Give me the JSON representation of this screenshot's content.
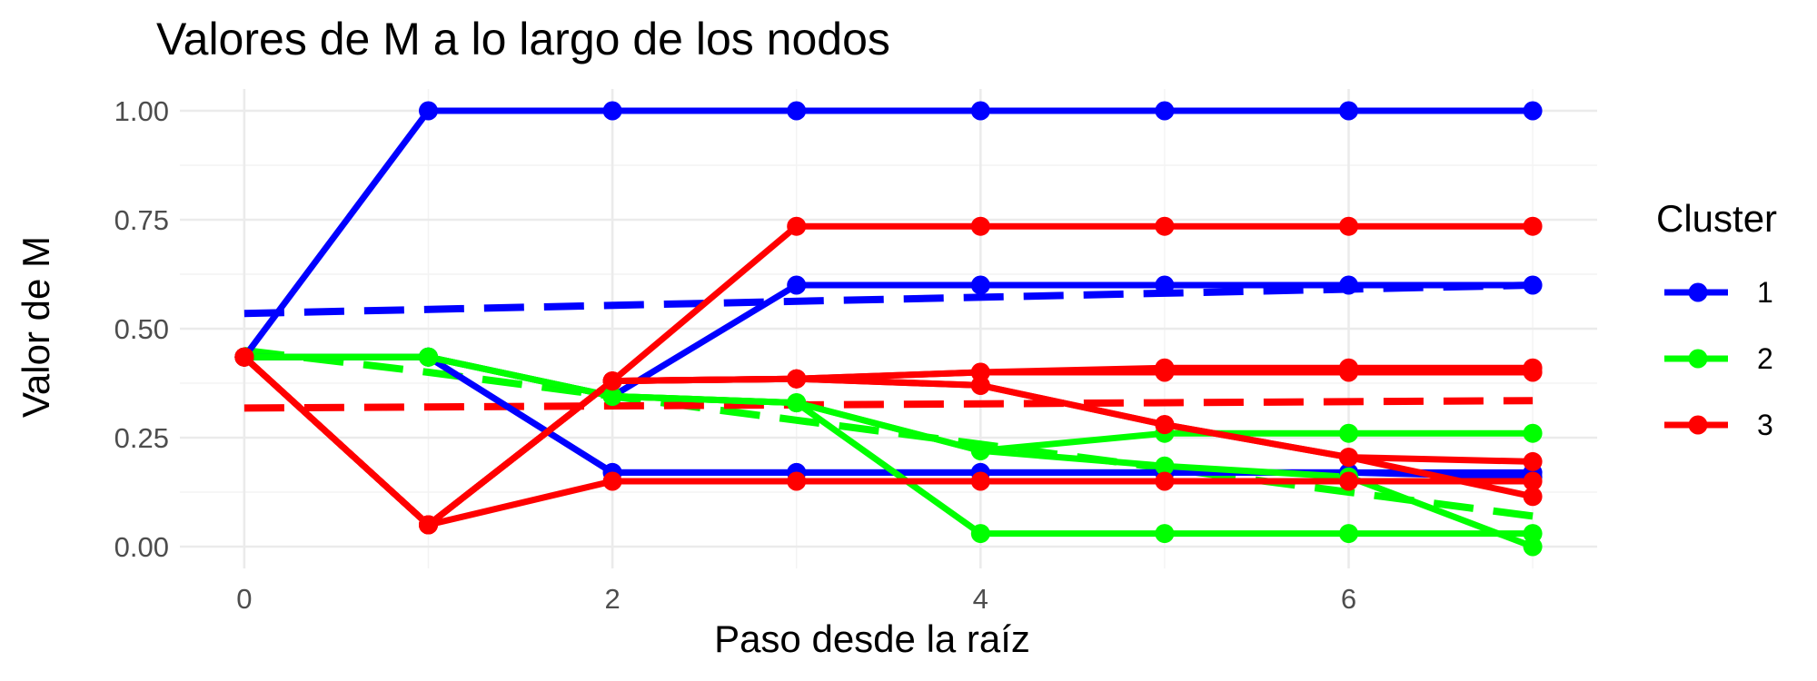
{
  "chart_data": {
    "type": "line",
    "title": "Valores de M a lo largo de los nodos",
    "xlabel": "Paso desde la raíz",
    "ylabel": "Valor de M",
    "xlim": [
      -0.35,
      7.35
    ],
    "ylim": [
      -0.05,
      1.05
    ],
    "x_ticks": [
      0,
      2,
      4,
      6
    ],
    "x_tick_labels": [
      "0",
      "2",
      "4",
      "6"
    ],
    "y_ticks": [
      0,
      0.25,
      0.5,
      0.75,
      1.0
    ],
    "y_tick_labels": [
      "0.00",
      "0.25",
      "0.50",
      "0.75",
      "1.00"
    ],
    "grid": true,
    "legend": {
      "title": "Cluster",
      "position": "right",
      "entries": [
        {
          "label": "1",
          "color": "#0000ff"
        },
        {
          "label": "2",
          "color": "#00ff00"
        },
        {
          "label": "3",
          "color": "#ff0000"
        }
      ]
    },
    "x": [
      0,
      1,
      2,
      3,
      4,
      5,
      6,
      7
    ],
    "series": [
      {
        "cluster": "1",
        "color": "#0000ff",
        "values": [
          0.435,
          1.0,
          1.0,
          1.0,
          1.0,
          1.0,
          1.0,
          1.0
        ]
      },
      {
        "cluster": "1",
        "color": "#0000ff",
        "values": [
          0.435,
          0.435,
          0.345,
          0.6,
          0.6,
          0.6,
          0.6,
          0.6
        ]
      },
      {
        "cluster": "1",
        "color": "#0000ff",
        "values": [
          0.435,
          0.435,
          0.17,
          0.17,
          0.17,
          0.17,
          0.17,
          0.17
        ]
      },
      {
        "cluster": "1",
        "color": "#0000ff",
        "values": [
          0.435,
          0.435,
          0.17,
          0.17,
          0.17,
          0.17,
          0.17,
          0.16
        ]
      },
      {
        "cluster": "2",
        "color": "#00ff00",
        "values": [
          0.435,
          0.435,
          0.345,
          0.33,
          0.22,
          0.26,
          0.26,
          0.26
        ]
      },
      {
        "cluster": "2",
        "color": "#00ff00",
        "values": [
          0.435,
          0.435,
          0.345,
          0.33,
          0.22,
          0.185,
          0.16,
          0.0
        ]
      },
      {
        "cluster": "2",
        "color": "#00ff00",
        "values": [
          0.435,
          0.435,
          0.345,
          0.33,
          0.03,
          0.03,
          0.03,
          0.03
        ]
      },
      {
        "cluster": "3",
        "color": "#ff0000",
        "values": [
          0.435,
          0.05,
          0.38,
          0.735,
          0.735,
          0.735,
          0.735,
          0.735
        ]
      },
      {
        "cluster": "3",
        "color": "#ff0000",
        "values": [
          0.435,
          0.05,
          0.38,
          0.385,
          0.4,
          0.41,
          0.41,
          0.41
        ]
      },
      {
        "cluster": "3",
        "color": "#ff0000",
        "values": [
          0.435,
          0.05,
          0.38,
          0.385,
          0.4,
          0.4,
          0.4,
          0.4
        ]
      },
      {
        "cluster": "3",
        "color": "#ff0000",
        "values": [
          0.435,
          0.05,
          0.38,
          0.385,
          0.37,
          0.28,
          0.205,
          0.195
        ]
      },
      {
        "cluster": "3",
        "color": "#ff0000",
        "values": [
          0.435,
          0.05,
          0.38,
          0.385,
          0.37,
          0.28,
          0.205,
          0.115
        ]
      },
      {
        "cluster": "3",
        "color": "#ff0000",
        "values": [
          0.435,
          0.05,
          0.15,
          0.15,
          0.15,
          0.15,
          0.15,
          0.15
        ]
      }
    ],
    "trend_lines": [
      {
        "cluster": "1",
        "color": "#0000ff",
        "x": [
          0,
          7
        ],
        "values": [
          0.535,
          0.6
        ]
      },
      {
        "cluster": "2",
        "color": "#00ff00",
        "x": [
          0,
          1,
          2,
          3,
          4,
          5,
          6,
          7
        ],
        "values": [
          0.45,
          0.4,
          0.345,
          0.29,
          0.235,
          0.18,
          0.125,
          0.07
        ]
      },
      {
        "cluster": "3",
        "color": "#ff0000",
        "x": [
          0,
          7
        ],
        "values": [
          0.318,
          0.335
        ]
      }
    ]
  }
}
